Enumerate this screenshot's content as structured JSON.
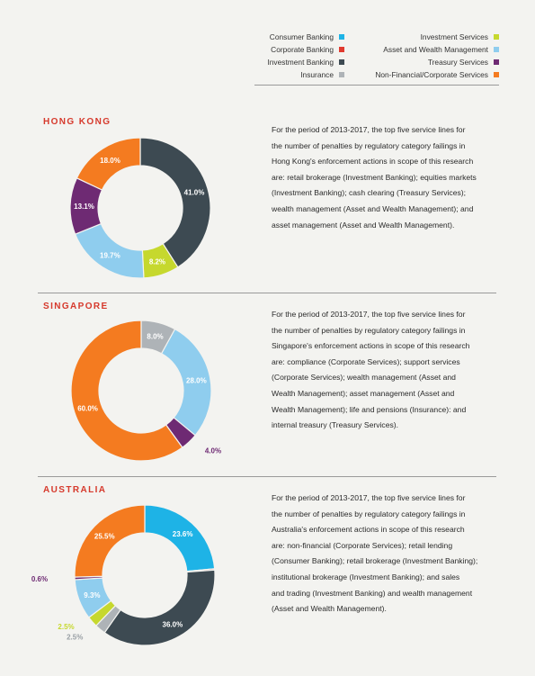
{
  "legend": {
    "left": [
      {
        "label": "Consumer Banking",
        "color": "#1eb3e6"
      },
      {
        "label": "Corporate Banking",
        "color": "#e03a2f"
      },
      {
        "label": "Investment Banking",
        "color": "#3d4a52"
      },
      {
        "label": "Insurance",
        "color": "#aeb3b7"
      }
    ],
    "right": [
      {
        "label": "Investment Services",
        "color": "#c6d82e"
      },
      {
        "label": "Asset and Wealth Management",
        "color": "#8fcdee"
      },
      {
        "label": "Treasury Services",
        "color": "#6e2a73"
      },
      {
        "label": "Non-Financial/Corporate Services",
        "color": "#f47b20"
      }
    ]
  },
  "sections": [
    {
      "title": "HONG KONG",
      "description": "For the period of 2013-2017, the top five service lines for the number of penalties by regulatory category failings in Hong Kong's enforcement actions in scope of this research are: retail brokerage (Investment Banking); equities markets (Investment Banking); cash clearing (Treasury Services); wealth management (Asset and Wealth Management); and asset management (Asset and Wealth Management).",
      "desc_lines": [
        "For the period of 2013-2017, the top five service lines for",
        "the number of penalties by regulatory category failings in",
        "Hong Kong's enforcement actions in scope of this research",
        "are: retail brokerage (Investment Banking); equities markets",
        "(Investment Banking); cash clearing (Treasury Services);",
        "wealth management (Asset and Wealth Management); and",
        "asset management (Asset and Wealth Management)."
      ]
    },
    {
      "title": "SINGAPORE",
      "description": "For the period of 2013-2017, the top five service lines for the number of penalties by regulatory category failings in Singapore's enforcement actions in scope of this research are: compliance (Corporate Services); support services (Corporate Services); wealth management (Asset and Wealth Management); asset management (Asset and Wealth Management); life and pensions (Insurance): and internal treasury (Treasury Services).",
      "desc_lines": [
        "For the period of 2013-2017, the top five service lines for",
        "the number of penalties by regulatory category failings in",
        "Singapore's enforcement actions in scope of this research",
        "are: compliance (Corporate Services); support services",
        "(Corporate Services); wealth management (Asset and",
        "Wealth Management); asset management (Asset and",
        "Wealth Management); life and pensions (Insurance): and",
        "internal treasury (Treasury Services)."
      ]
    },
    {
      "title": "AUSTRALIA",
      "description": "For the period of 2013-2017, the top five service lines for the number of penalties by regulatory category failings in Australia's enforcement actions in scope of this research are: non-financial (Corporate Services); retail lending (Consumer Banking); retail brokerage (Investment Banking); institutional brokerage (Investment Banking); and sales and trading (Investment Banking) and wealth management (Asset and Wealth Management).",
      "desc_lines": [
        "For the period of 2013-2017, the top five service lines for",
        "the number of penalties by regulatory category failings in",
        "Australia's enforcement actions in scope of this research",
        "are: non-financial (Corporate Services); retail lending",
        "(Consumer Banking); retail brokerage (Investment Banking);",
        "institutional brokerage (Investment Banking); and sales",
        "and trading (Investment Banking) and wealth management",
        "(Asset and Wealth Management)."
      ]
    }
  ],
  "chart_data": [
    {
      "type": "pie",
      "title": "HONG KONG",
      "donut": true,
      "slices": [
        {
          "category": "Investment Banking",
          "value": 41.0,
          "label": "41.0%",
          "color": "#3d4a52"
        },
        {
          "category": "Investment Services",
          "value": 8.2,
          "label": "8.2%",
          "color": "#c6d82e"
        },
        {
          "category": "Asset and Wealth Management",
          "value": 19.7,
          "label": "19.7%",
          "color": "#8fcdee"
        },
        {
          "category": "Treasury Services",
          "value": 13.1,
          "label": "13.1%",
          "color": "#6e2a73"
        },
        {
          "category": "Non-Financial/Corporate Services",
          "value": 18.0,
          "label": "18.0%",
          "color": "#f47b20"
        }
      ]
    },
    {
      "type": "pie",
      "title": "SINGAPORE",
      "donut": true,
      "slices": [
        {
          "category": "Insurance",
          "value": 8.0,
          "label": "8.0%",
          "color": "#aeb3b7"
        },
        {
          "category": "Asset and Wealth Management",
          "value": 28.0,
          "label": "28.0%",
          "color": "#8fcdee"
        },
        {
          "category": "Treasury Services",
          "value": 4.0,
          "label": "4.0%",
          "color": "#6e2a73"
        },
        {
          "category": "Non-Financial/Corporate Services",
          "value": 60.0,
          "label": "60.0%",
          "color": "#f47b20"
        }
      ]
    },
    {
      "type": "pie",
      "title": "AUSTRALIA",
      "donut": true,
      "slices": [
        {
          "category": "Consumer Banking",
          "value": 23.6,
          "label": "23.6%",
          "color": "#1eb3e6"
        },
        {
          "category": "Corporate Banking",
          "value": 0.3,
          "label": "",
          "color": "#e03a2f"
        },
        {
          "category": "Investment Banking",
          "value": 36.0,
          "label": "36.0%",
          "color": "#3d4a52"
        },
        {
          "category": "Insurance",
          "value": 2.5,
          "label": "2.5%",
          "color": "#aeb3b7"
        },
        {
          "category": "Investment Services",
          "value": 2.5,
          "label": "2.5%",
          "color": "#c6d82e"
        },
        {
          "category": "Asset and Wealth Management",
          "value": 9.3,
          "label": "9.3%",
          "color": "#8fcdee"
        },
        {
          "category": "Treasury Services",
          "value": 0.6,
          "label": "0.6%",
          "color": "#6e2a73"
        },
        {
          "category": "Non-Financial/Corporate Services",
          "value": 25.5,
          "label": "25.5%",
          "color": "#f47b20"
        }
      ]
    }
  ]
}
